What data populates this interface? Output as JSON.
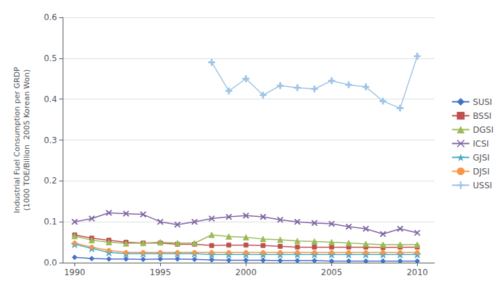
{
  "chart_data": {
    "type": "line",
    "ylabel": "Industrial Fuel Consumption per GRDP\n(1000 TOE/Billion  2005 Korean Won)",
    "x": [
      1990,
      1991,
      1992,
      1993,
      1994,
      1995,
      1996,
      1997,
      1998,
      1999,
      2000,
      2001,
      2002,
      2003,
      2004,
      2005,
      2006,
      2007,
      2008,
      2009,
      2010
    ],
    "series": [
      {
        "name": "SUSI",
        "color": "#4472C4",
        "marker": "diamond",
        "values": [
          0.013,
          0.01,
          0.009,
          0.009,
          0.008,
          0.009,
          0.009,
          0.008,
          0.007,
          0.006,
          0.006,
          0.006,
          0.005,
          0.005,
          0.005,
          0.004,
          0.004,
          0.004,
          0.004,
          0.004,
          0.004
        ]
      },
      {
        "name": "BSSI",
        "color": "#C0504D",
        "marker": "square",
        "values": [
          0.068,
          0.06,
          0.055,
          0.05,
          0.048,
          0.048,
          0.045,
          0.045,
          0.042,
          0.043,
          0.043,
          0.042,
          0.04,
          0.038,
          0.038,
          0.038,
          0.038,
          0.038,
          0.037,
          0.038,
          0.038
        ]
      },
      {
        "name": "DGSI",
        "color": "#9BBB59",
        "marker": "triangle",
        "values": [
          0.065,
          0.055,
          0.05,
          0.047,
          0.048,
          0.05,
          0.048,
          0.048,
          0.068,
          0.064,
          0.062,
          0.058,
          0.056,
          0.053,
          0.052,
          0.05,
          0.048,
          0.046,
          0.044,
          0.044,
          0.044
        ]
      },
      {
        "name": "ICSI",
        "color": "#8064A2",
        "marker": "x",
        "values": [
          0.1,
          0.108,
          0.122,
          0.12,
          0.118,
          0.1,
          0.093,
          0.1,
          0.108,
          0.112,
          0.115,
          0.112,
          0.105,
          0.1,
          0.097,
          0.095,
          0.088,
          0.083,
          0.07,
          0.083,
          0.073
        ]
      },
      {
        "name": "GJSI",
        "color": "#4BACC6",
        "marker": "star",
        "values": [
          0.045,
          0.035,
          0.025,
          0.022,
          0.022,
          0.022,
          0.022,
          0.022,
          0.02,
          0.02,
          0.02,
          0.02,
          0.02,
          0.02,
          0.02,
          0.02,
          0.02,
          0.02,
          0.02,
          0.02,
          0.02
        ]
      },
      {
        "name": "DJSI",
        "color": "#F79646",
        "marker": "circle",
        "values": [
          0.048,
          0.038,
          0.03,
          0.025,
          0.025,
          0.025,
          0.025,
          0.025,
          0.025,
          0.025,
          0.025,
          0.025,
          0.025,
          0.025,
          0.025,
          0.025,
          0.025,
          0.025,
          0.025,
          0.025,
          0.025
        ]
      },
      {
        "name": "USSI",
        "color": "#9DC3E6",
        "marker": "plus",
        "x": [
          1998,
          1999,
          2000,
          2001,
          2002,
          2003,
          2004,
          2005,
          2006,
          2007,
          2008,
          2009,
          2010
        ],
        "values": [
          0.49,
          0.42,
          0.45,
          0.41,
          0.433,
          0.428,
          0.425,
          0.445,
          0.435,
          0.43,
          0.395,
          0.378,
          0.505
        ]
      }
    ],
    "xlim": [
      1989.3,
      2011.0
    ],
    "xticks": [
      1990,
      1995,
      2000,
      2005,
      2010
    ],
    "ylim": [
      0.0,
      0.6
    ],
    "yticks": [
      {
        "value": 0.0,
        "label": "0.0"
      },
      0.1,
      0.2,
      0.3,
      0.4,
      0.5,
      0.6
    ],
    "grid": true,
    "legend": "right"
  }
}
